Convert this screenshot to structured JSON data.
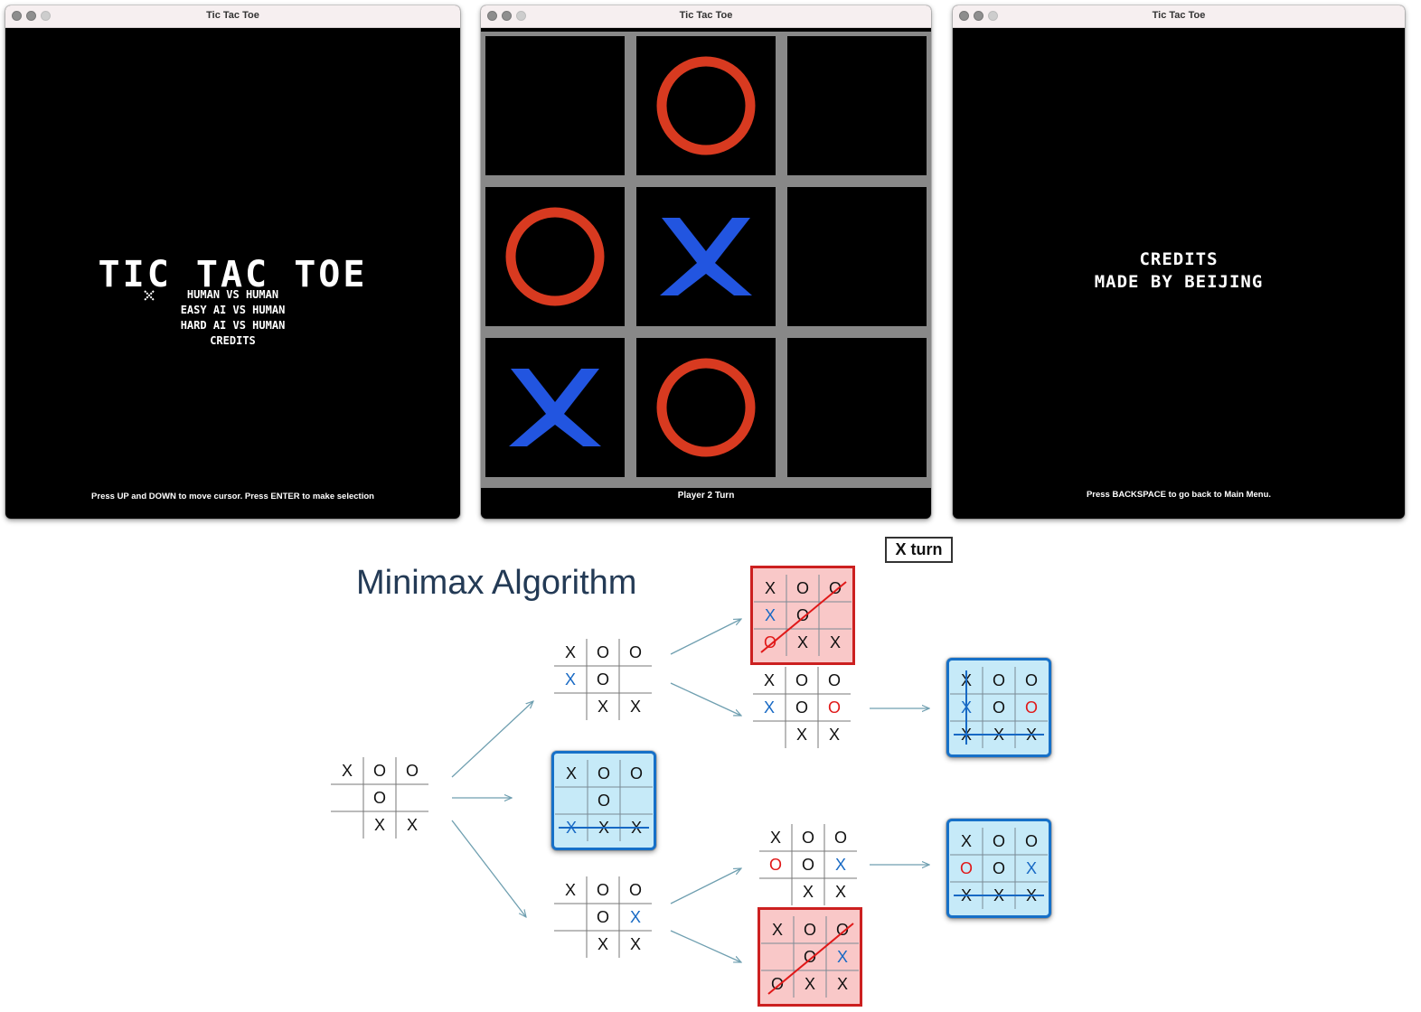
{
  "window_title": "Tic Tac Toe",
  "menu": {
    "title": "TIC TAC TOE",
    "cursor_icon": "x-cursor-icon",
    "options": [
      "HUMAN VS HUMAN",
      "EASY AI VS HUMAN",
      "HARD AI VS HUMAN",
      "CREDITS"
    ],
    "hint": "Press UP and DOWN to move cursor. Press ENTER to make selection"
  },
  "game": {
    "board": [
      "",
      "O",
      "",
      "O",
      "X",
      "",
      "X",
      "O",
      ""
    ],
    "status": "Player 2 Turn",
    "colors": {
      "o": "#d83a20",
      "x": "#2255e0",
      "grid": "#888888"
    }
  },
  "credits": {
    "heading": "CREDITS",
    "line": "MADE BY BEIJING",
    "hint": "Press BACKSPACE to go back to Main Menu."
  },
  "diagram": {
    "title": "Minimax Algorithm",
    "turn_label": "X turn",
    "colors": {
      "x_move": "#1769c4",
      "o_move": "#e01818",
      "loss_fill": "#f9c8c8",
      "win_fill": "#c6eaf8"
    },
    "boards": [
      {
        "id": "root",
        "cells": [
          "X",
          "O",
          "O",
          "",
          "O",
          "",
          "",
          "X",
          "X"
        ]
      },
      {
        "id": "a",
        "cells": [
          "X",
          "O",
          "O",
          "X",
          "O",
          "",
          "",
          "X",
          "X"
        ],
        "new": [
          3
        ]
      },
      {
        "id": "b",
        "cells": [
          "X",
          "O",
          "O",
          "",
          "O",
          "",
          "X",
          "X",
          "X"
        ],
        "new": [
          6
        ],
        "outcome": "win",
        "strike": "row3"
      },
      {
        "id": "c",
        "cells": [
          "X",
          "O",
          "O",
          "",
          "O",
          "X",
          "",
          "X",
          "X"
        ],
        "new": [
          5
        ]
      },
      {
        "id": "a1",
        "cells": [
          "X",
          "O",
          "O",
          "X",
          "O",
          "",
          "O",
          "X",
          "X"
        ],
        "new": [
          3,
          6
        ],
        "outcome": "loss",
        "strike": "diag"
      },
      {
        "id": "a2",
        "cells": [
          "X",
          "O",
          "O",
          "X",
          "O",
          "O",
          "",
          "X",
          "X"
        ],
        "new": [
          3,
          5
        ]
      },
      {
        "id": "a2w",
        "cells": [
          "X",
          "O",
          "O",
          "X",
          "O",
          "O",
          "X",
          "X",
          "X"
        ],
        "new": [
          3,
          5
        ],
        "outcome": "win",
        "strike": "row3col1"
      },
      {
        "id": "c1",
        "cells": [
          "X",
          "O",
          "O",
          "O",
          "O",
          "X",
          "",
          "X",
          "X"
        ],
        "new": [
          3,
          5
        ]
      },
      {
        "id": "c1w",
        "cells": [
          "X",
          "O",
          "O",
          "O",
          "O",
          "X",
          "X",
          "X",
          "X"
        ],
        "new": [
          3,
          5
        ],
        "outcome": "win",
        "strike": "row3"
      },
      {
        "id": "c2",
        "cells": [
          "X",
          "O",
          "O",
          "",
          "O",
          "X",
          "O",
          "X",
          "X"
        ],
        "new": [
          5
        ],
        "outcome": "loss",
        "strike": "diag"
      }
    ]
  }
}
